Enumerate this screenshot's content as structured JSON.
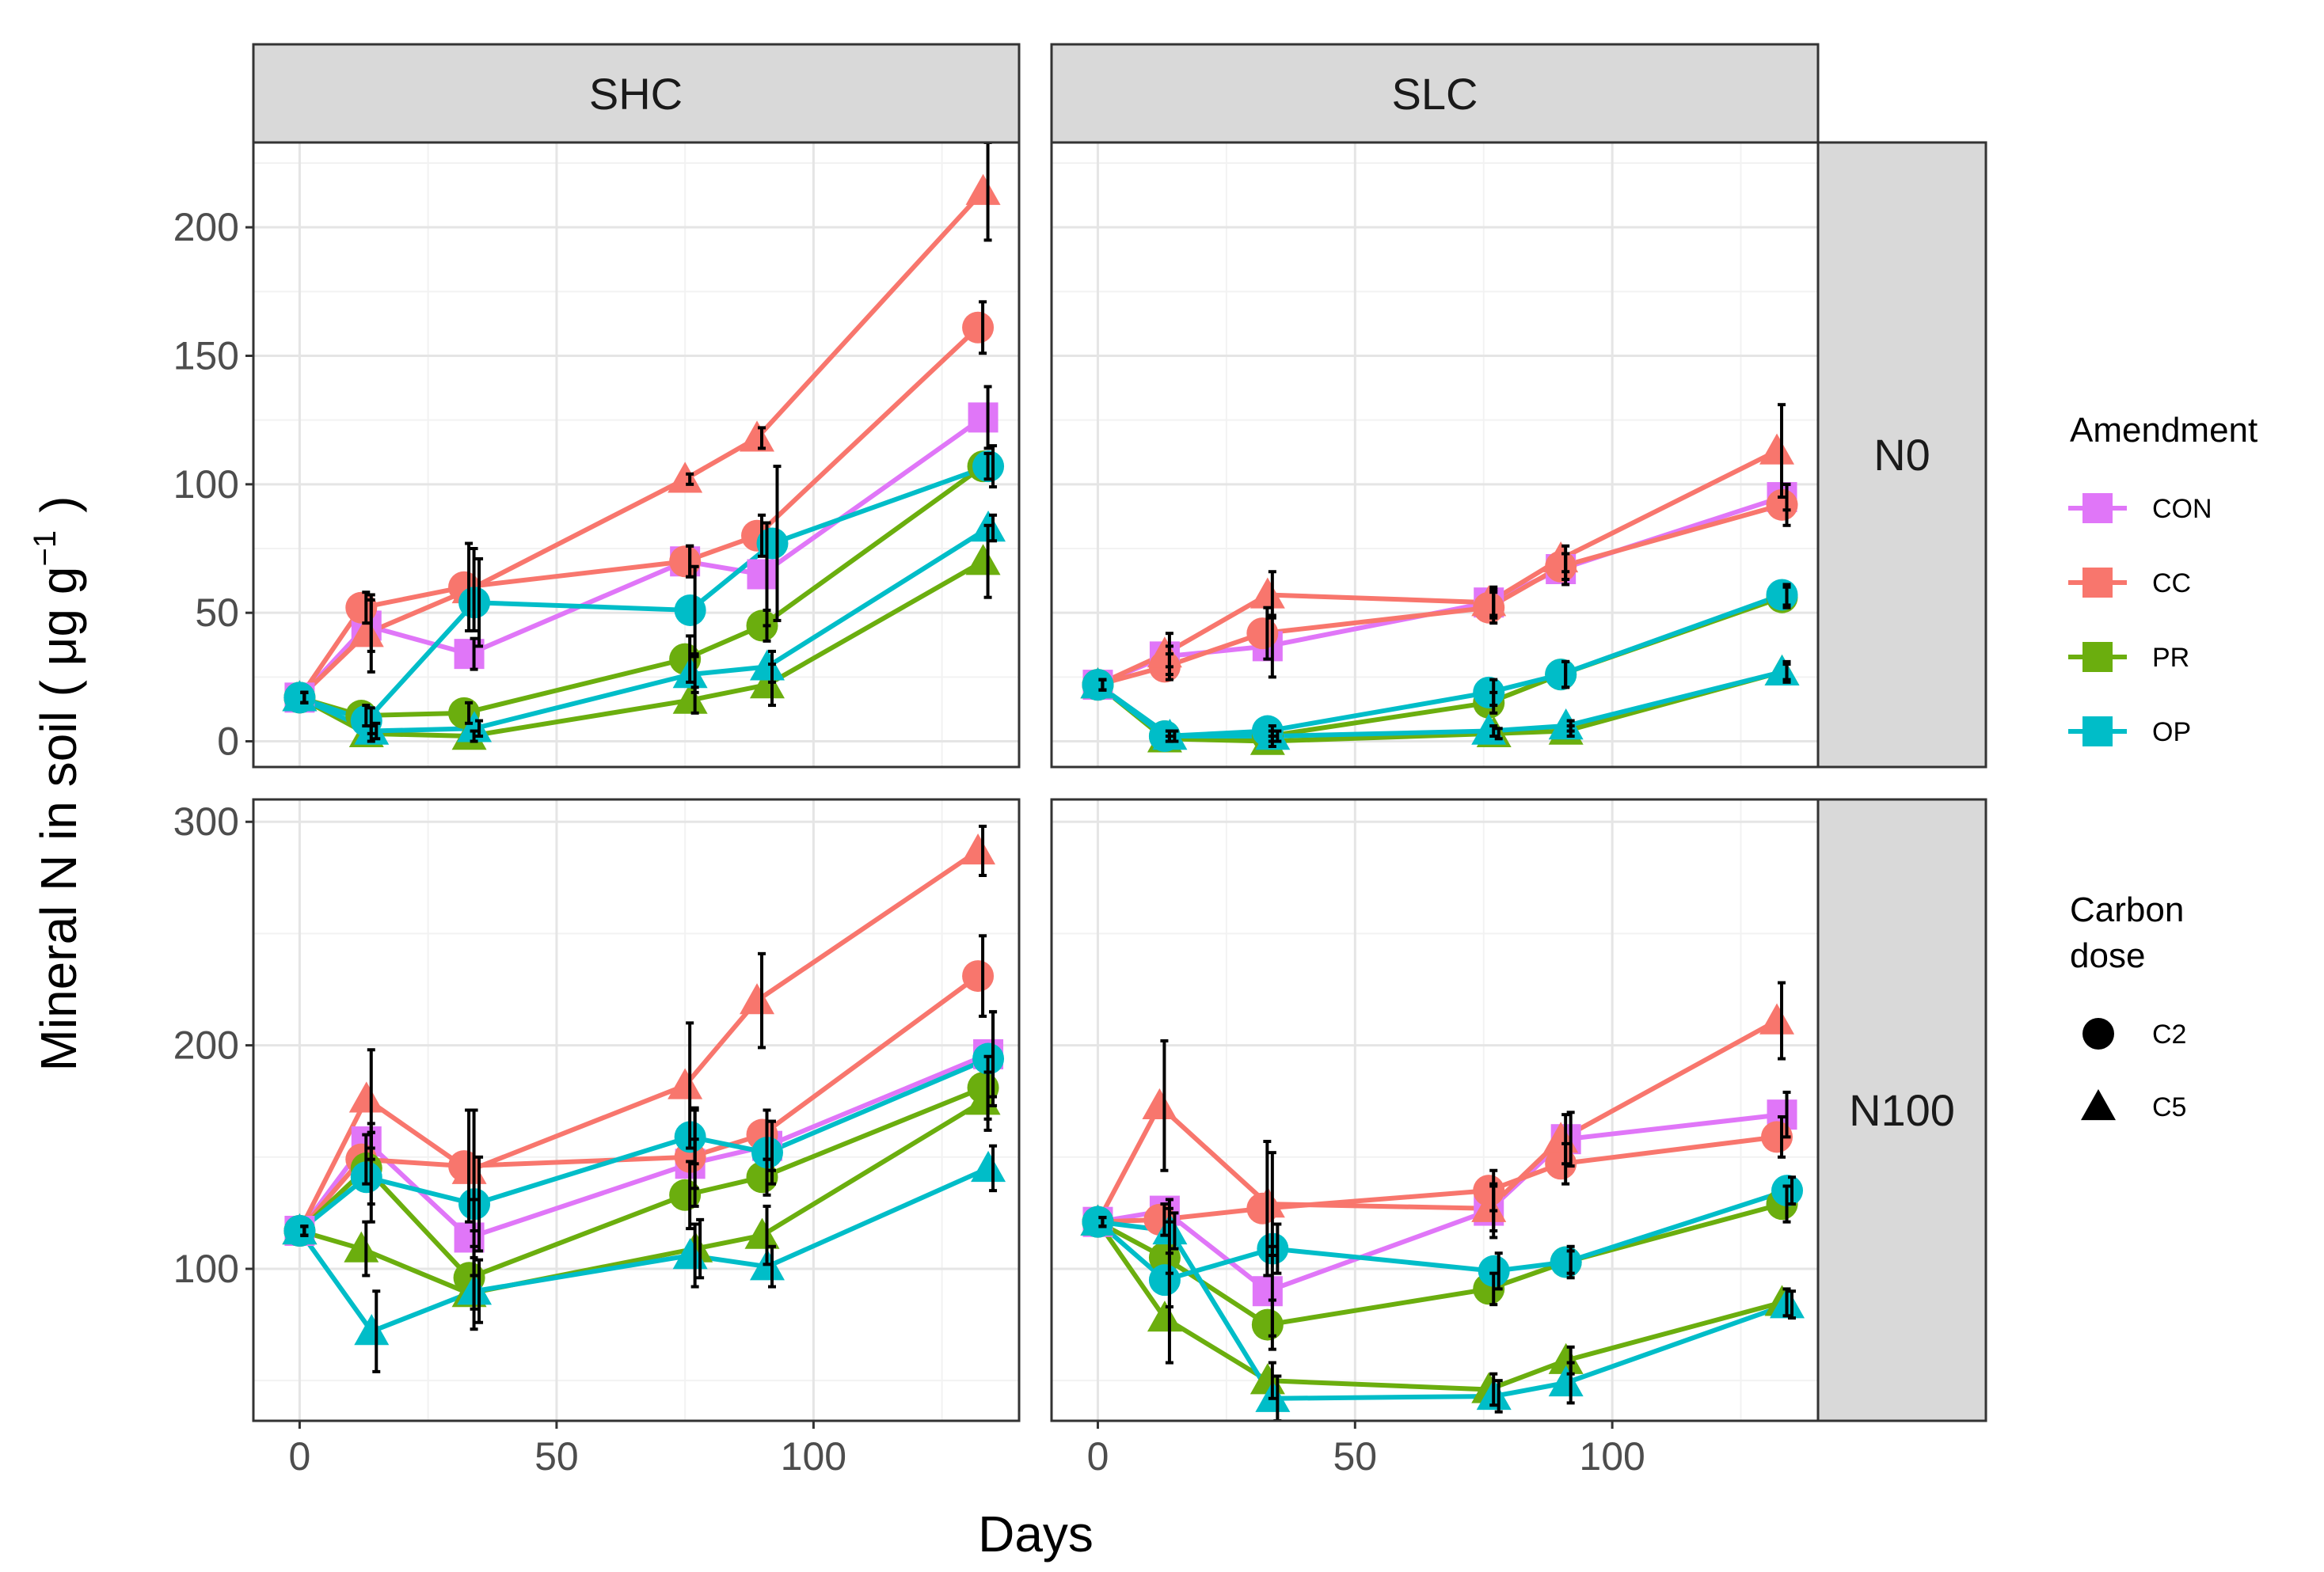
{
  "chart_data": {
    "type": "line",
    "facet_cols": [
      "SHC",
      "SLC"
    ],
    "facet_rows": [
      "N0",
      "N100"
    ],
    "xlabel": "Days",
    "ylabel": "Mineral N in soil ( μg g",
    "ylabel_superscript": "−1",
    "ylabel_close": ")",
    "x_ticks": [
      0,
      50,
      100
    ],
    "x_tick_labels": [
      "0",
      "50",
      "100"
    ],
    "xlim": [
      -9,
      140
    ],
    "rows": [
      {
        "label": "N0",
        "ylim": [
          -10,
          233
        ],
        "y_ticks": [
          0,
          50,
          100,
          150,
          200
        ],
        "y_tick_labels": [
          "0",
          "50",
          "100",
          "150",
          "200"
        ]
      },
      {
        "label": "N100",
        "ylim": [
          32,
          310
        ],
        "y_ticks": [
          100,
          200,
          300
        ],
        "y_tick_labels": [
          "100",
          "200",
          "300"
        ]
      }
    ],
    "legend": {
      "amendment_title": "Amendment",
      "amendment": [
        {
          "name": "CON",
          "color": "#E076F8"
        },
        {
          "name": "CC",
          "color": "#F8766D"
        },
        {
          "name": "PR",
          "color": "#6BAE0E"
        },
        {
          "name": "OP",
          "color": "#00BDC8"
        }
      ],
      "dose_title_lines": [
        "Carbon",
        "dose"
      ],
      "dose": [
        {
          "name": "C2",
          "shape": "circle"
        },
        {
          "name": "C5",
          "shape": "triangle"
        }
      ]
    },
    "series": [
      {
        "panel": "SHC-N0",
        "amendment": "CON",
        "dose": "C2",
        "x": [
          0,
          13,
          33,
          75,
          90,
          133
        ],
        "y": [
          17,
          45,
          34,
          70,
          65,
          126
        ],
        "err": [
          2,
          10,
          6,
          6,
          20,
          12
        ]
      },
      {
        "panel": "SHC-N0",
        "amendment": "CC",
        "dose": "C2",
        "x": [
          0,
          12,
          32,
          75,
          89,
          132
        ],
        "y": [
          17,
          52,
          60,
          70,
          80,
          161
        ],
        "err": [
          2,
          6,
          17,
          6,
          8,
          10
        ]
      },
      {
        "panel": "SHC-N0",
        "amendment": "CC",
        "dose": "C5",
        "x": [
          0,
          13,
          33,
          75,
          89,
          133
        ],
        "y": [
          17,
          42,
          59,
          102,
          118,
          214
        ],
        "err": [
          2,
          15,
          16,
          2,
          4,
          19
        ]
      },
      {
        "panel": "SHC-N0",
        "amendment": "PR",
        "dose": "C2",
        "x": [
          0,
          12,
          32,
          75,
          90,
          133
        ],
        "y": [
          17,
          10,
          11,
          32,
          45,
          107
        ],
        "err": [
          2,
          4,
          4,
          9,
          6,
          5
        ]
      },
      {
        "panel": "SHC-N0",
        "amendment": "PR",
        "dose": "C5",
        "x": [
          0,
          13,
          33,
          76,
          91,
          133
        ],
        "y": [
          17,
          3,
          2,
          16,
          22,
          70
        ],
        "err": [
          2,
          3,
          2,
          5,
          8,
          14
        ]
      },
      {
        "panel": "SHC-N0",
        "amendment": "OP",
        "dose": "C2",
        "x": [
          0,
          13,
          34,
          76,
          92,
          134
        ],
        "y": [
          17,
          8,
          54,
          51,
          77,
          107
        ],
        "err": [
          2,
          5,
          17,
          17,
          30,
          8
        ]
      },
      {
        "panel": "SHC-N0",
        "amendment": "OP",
        "dose": "C5",
        "x": [
          0,
          14,
          34,
          76,
          91,
          134
        ],
        "y": [
          17,
          4,
          5,
          26,
          29,
          83
        ],
        "err": [
          2,
          3,
          3,
          7,
          6,
          5
        ]
      },
      {
        "panel": "SLC-N0",
        "amendment": "CON",
        "dose": "C2",
        "x": [
          0,
          13,
          33,
          76,
          90,
          133
        ],
        "y": [
          22,
          33,
          37,
          54,
          67,
          95
        ],
        "err": [
          2,
          4,
          12,
          5,
          6,
          5
        ]
      },
      {
        "panel": "SLC-N0",
        "amendment": "CC",
        "dose": "C2",
        "x": [
          0,
          13,
          32,
          76,
          90,
          133
        ],
        "y": [
          22,
          29,
          42,
          52,
          68,
          92
        ],
        "err": [
          2,
          5,
          10,
          6,
          5,
          8
        ]
      },
      {
        "panel": "SLC-N0",
        "amendment": "CC",
        "dose": "C5",
        "x": [
          0,
          13,
          33,
          76,
          90,
          132
        ],
        "y": [
          22,
          34,
          57,
          54,
          71,
          113
        ],
        "err": [
          2,
          8,
          9,
          6,
          5,
          18
        ]
      },
      {
        "panel": "SLC-N0",
        "amendment": "PR",
        "dose": "C2",
        "x": [
          0,
          13,
          33,
          76,
          90,
          133
        ],
        "y": [
          22,
          2,
          2,
          15,
          26,
          56
        ],
        "err": [
          2,
          2,
          2,
          4,
          5,
          4
        ]
      },
      {
        "panel": "SLC-N0",
        "amendment": "PR",
        "dose": "C5",
        "x": [
          0,
          13,
          33,
          77,
          91,
          133
        ],
        "y": [
          22,
          1,
          0,
          3,
          4,
          27
        ],
        "err": [
          2,
          1,
          2,
          2,
          2,
          3
        ]
      },
      {
        "panel": "SLC-N0",
        "amendment": "OP",
        "dose": "C2",
        "x": [
          0,
          13,
          33,
          76,
          90,
          133
        ],
        "y": [
          22,
          2,
          4,
          19,
          26,
          57
        ],
        "err": [
          2,
          2,
          2,
          5,
          5,
          4
        ]
      },
      {
        "panel": "SLC-N0",
        "amendment": "OP",
        "dose": "C5",
        "x": [
          0,
          14,
          34,
          76,
          91,
          133
        ],
        "y": [
          22,
          2,
          2,
          4,
          6,
          27
        ],
        "err": [
          2,
          2,
          2,
          2,
          2,
          4
        ]
      },
      {
        "panel": "SHC-N100",
        "amendment": "CON",
        "dose": "C2",
        "x": [
          0,
          13,
          33,
          76,
          91,
          134
        ],
        "y": [
          117,
          157,
          114,
          147,
          155,
          196
        ],
        "err": [
          2,
          8,
          17,
          11,
          11,
          19
        ]
      },
      {
        "panel": "SHC-N100",
        "amendment": "CC",
        "dose": "C2",
        "x": [
          0,
          12,
          32,
          76,
          90,
          132
        ],
        "y": [
          117,
          149,
          146,
          150,
          160,
          231
        ],
        "err": [
          2,
          11,
          25,
          22,
          11,
          18
        ]
      },
      {
        "panel": "SHC-N100",
        "amendment": "CC",
        "dose": "C5",
        "x": [
          0,
          13,
          33,
          75,
          89,
          132
        ],
        "y": [
          117,
          176,
          144,
          182,
          220,
          287
        ],
        "err": [
          2,
          22,
          27,
          28,
          21,
          11
        ]
      },
      {
        "panel": "SHC-N100",
        "amendment": "PR",
        "dose": "C2",
        "x": [
          0,
          13,
          33,
          75,
          90,
          133
        ],
        "y": [
          117,
          145,
          96,
          133,
          141,
          181
        ],
        "err": [
          2,
          16,
          14,
          15,
          8,
          14
        ]
      },
      {
        "panel": "SHC-N100",
        "amendment": "PR",
        "dose": "C5",
        "x": [
          0,
          12,
          33,
          77,
          90,
          133
        ],
        "y": [
          117,
          109,
          89,
          109,
          115,
          175
        ],
        "err": [
          2,
          12,
          16,
          13,
          13,
          13
        ]
      },
      {
        "panel": "SHC-N100",
        "amendment": "OP",
        "dose": "C2",
        "x": [
          0,
          13,
          34,
          76,
          91,
          134
        ],
        "y": [
          117,
          141,
          129,
          159,
          152,
          194
        ],
        "err": [
          2,
          20,
          21,
          12,
          14,
          21
        ]
      },
      {
        "panel": "SHC-N100",
        "amendment": "OP",
        "dose": "C5",
        "x": [
          0,
          14,
          34,
          76,
          91,
          134
        ],
        "y": [
          117,
          72,
          90,
          106,
          101,
          145
        ],
        "err": [
          2,
          18,
          14,
          14,
          9,
          10
        ]
      },
      {
        "panel": "SLC-N100",
        "amendment": "CON",
        "dose": "C2",
        "x": [
          0,
          13,
          33,
          76,
          91,
          133
        ],
        "y": [
          121,
          126,
          90,
          126,
          158,
          169
        ],
        "err": [
          2,
          5,
          20,
          12,
          12,
          10
        ]
      },
      {
        "panel": "SLC-N100",
        "amendment": "CC",
        "dose": "C2",
        "x": [
          0,
          12,
          32,
          76,
          90,
          132
        ],
        "y": [
          121,
          122,
          127,
          135,
          147,
          159
        ],
        "err": [
          2,
          7,
          30,
          9,
          9,
          9
        ]
      },
      {
        "panel": "SLC-N100",
        "amendment": "CC",
        "dose": "C5",
        "x": [
          0,
          12,
          33,
          76,
          90,
          132
        ],
        "y": [
          121,
          173,
          129,
          127,
          158,
          211
        ],
        "err": [
          2,
          29,
          23,
          10,
          11,
          17
        ]
      },
      {
        "panel": "SLC-N100",
        "amendment": "PR",
        "dose": "C2",
        "x": [
          0,
          13,
          33,
          76,
          91,
          133
        ],
        "y": [
          121,
          105,
          75,
          91,
          103,
          129
        ],
        "err": [
          2,
          22,
          11,
          7,
          5,
          8
        ]
      },
      {
        "panel": "SLC-N100",
        "amendment": "PR",
        "dose": "C5",
        "x": [
          0,
          13,
          33,
          76,
          91,
          133
        ],
        "y": [
          121,
          78,
          50,
          46,
          59,
          85
        ],
        "err": [
          2,
          20,
          8,
          7,
          6,
          6
        ]
      },
      {
        "panel": "SLC-N100",
        "amendment": "OP",
        "dose": "C2",
        "x": [
          0,
          13,
          34,
          77,
          91,
          134
        ],
        "y": [
          121,
          95,
          109,
          99,
          103,
          135
        ],
        "err": [
          2,
          12,
          11,
          8,
          7,
          6
        ]
      },
      {
        "panel": "SLC-N100",
        "amendment": "OP",
        "dose": "C5",
        "x": [
          0,
          14,
          34,
          77,
          91,
          134
        ],
        "y": [
          121,
          117,
          42,
          43,
          49,
          84
        ],
        "err": [
          2,
          8,
          10,
          7,
          9,
          6
        ]
      }
    ]
  }
}
